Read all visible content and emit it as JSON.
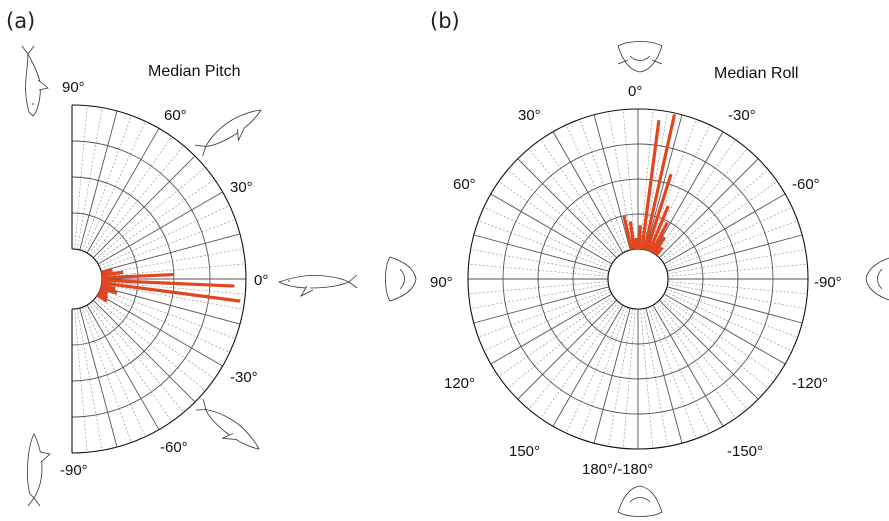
{
  "panels": {
    "a": {
      "letter": "(a)",
      "title": "Median Pitch",
      "ticks": [
        {
          "label": "90°",
          "angle": 90
        },
        {
          "label": "60°",
          "angle": 60
        },
        {
          "label": "30°",
          "angle": 30
        },
        {
          "label": "0°",
          "angle": 0
        },
        {
          "label": "-30°",
          "angle": -30
        },
        {
          "label": "-60°",
          "angle": -60
        },
        {
          "label": "-90°",
          "angle": -90
        }
      ]
    },
    "b": {
      "letter": "(b)",
      "title": "Median Roll",
      "ticks": [
        {
          "label": "0°",
          "angle": 0
        },
        {
          "label": "-30°",
          "angle": -30
        },
        {
          "label": "-60°",
          "angle": -60
        },
        {
          "label": "-90°",
          "angle": -90
        },
        {
          "label": "-120°",
          "angle": -120
        },
        {
          "label": "-150°",
          "angle": -150
        },
        {
          "label": "180°/-180°",
          "angle": 180
        },
        {
          "label": "150°",
          "angle": 150
        },
        {
          "label": "120°",
          "angle": 120
        },
        {
          "label": "90°",
          "angle": 90
        },
        {
          "label": "60°",
          "angle": 60
        },
        {
          "label": "30°",
          "angle": 30
        }
      ]
    }
  },
  "colors": {
    "bars": "#e1461e"
  },
  "icons": [
    "whale-vertical-up-icon",
    "whale-diagonal-up-icon",
    "whale-horizontal-icon",
    "whale-diagonal-down-icon",
    "whale-vertical-down-icon",
    "whale-head-front-icon",
    "whale-head-left-icon",
    "whale-head-right-icon",
    "whale-head-inverted-icon"
  ],
  "chart_data": [
    {
      "type": "bar",
      "subtype": "polar-histogram-half",
      "title": "Median Pitch",
      "theta_range": [
        -90,
        90
      ],
      "bin_width": 5,
      "radial_rings": 4,
      "bars": [
        {
          "angle": 12.5,
          "value": 0.08
        },
        {
          "angle": 7.5,
          "value": 0.15
        },
        {
          "angle": 2.5,
          "value": 0.5
        },
        {
          "angle": -2.5,
          "value": 0.92
        },
        {
          "angle": -7.5,
          "value": 0.97
        },
        {
          "angle": -12.5,
          "value": 0.1
        },
        {
          "angle": -17.5,
          "value": 0.12
        },
        {
          "angle": -22.5,
          "value": 0.06
        },
        {
          "angle": -27.5,
          "value": 0.07
        },
        {
          "angle": -32.5,
          "value": 0.08
        }
      ]
    },
    {
      "type": "bar",
      "subtype": "polar-histogram-full",
      "title": "Median Roll",
      "theta_range": [
        -180,
        180
      ],
      "bin_width": 5,
      "radial_rings": 4,
      "bars": [
        {
          "angle": 12.5,
          "value": 0.25
        },
        {
          "angle": 7.5,
          "value": 0.2
        },
        {
          "angle": 2.5,
          "value": 0.08
        },
        {
          "angle": -2.5,
          "value": 0.17
        },
        {
          "angle": -7.5,
          "value": 0.93
        },
        {
          "angle": -12.5,
          "value": 0.99
        },
        {
          "angle": -17.5,
          "value": 0.57
        },
        {
          "angle": -22.5,
          "value": 0.35
        },
        {
          "angle": -27.5,
          "value": 0.24
        },
        {
          "angle": -32.5,
          "value": 0.14
        },
        {
          "angle": -37.5,
          "value": 0.07
        }
      ]
    }
  ]
}
